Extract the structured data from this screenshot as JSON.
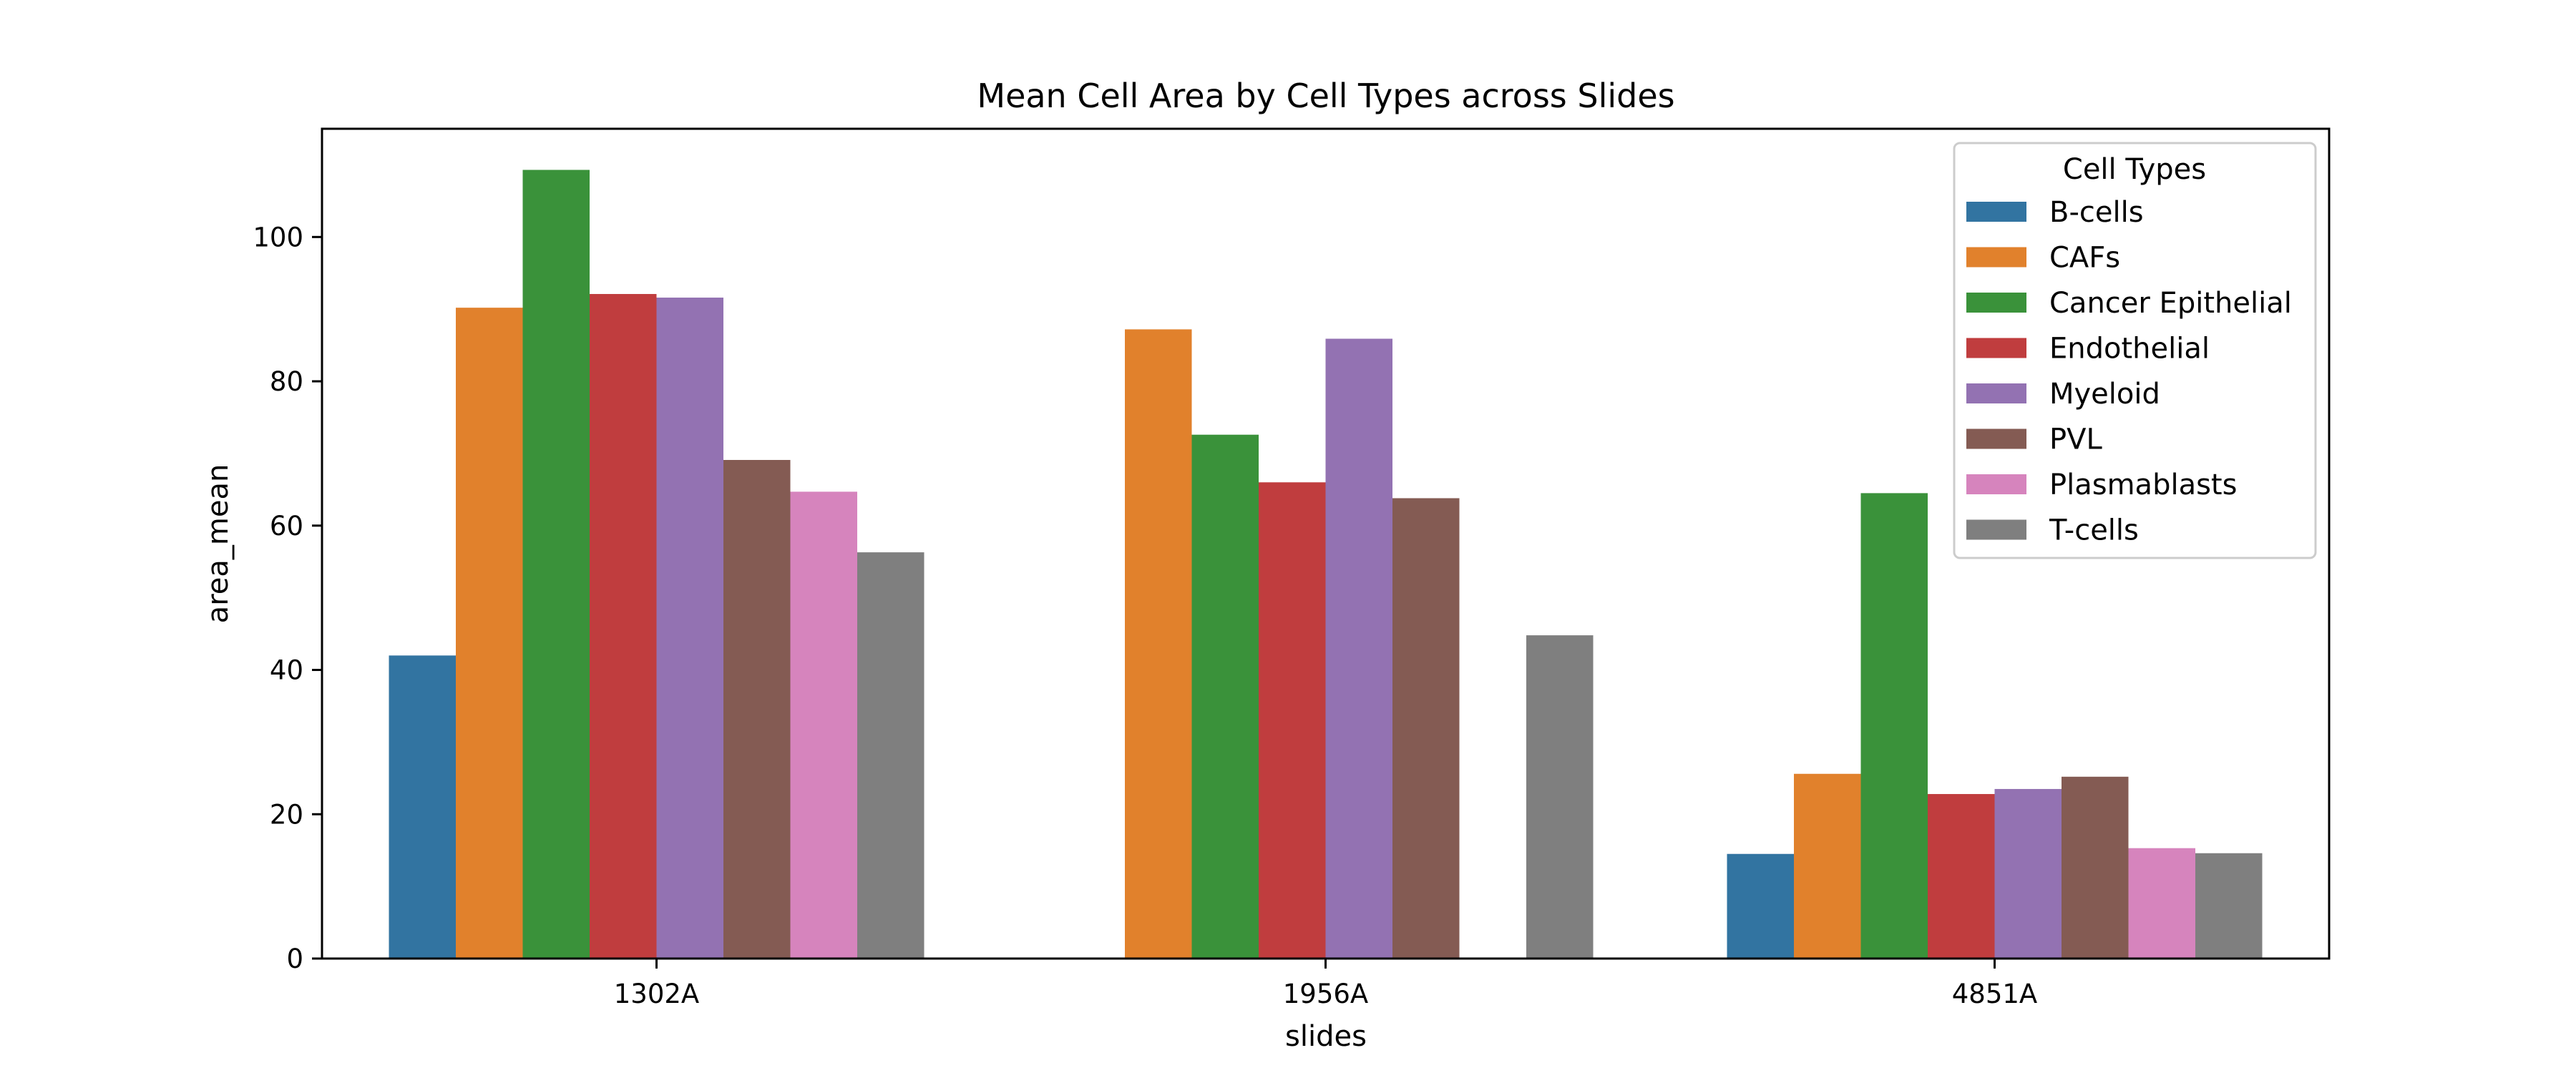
{
  "chart_data": {
    "type": "bar",
    "title": "Mean Cell Area by Cell Types across Slides",
    "xlabel": "slides",
    "ylabel": "area_mean",
    "ylim": [
      0,
      115
    ],
    "yticks": [
      0,
      20,
      40,
      60,
      80,
      100
    ],
    "grid": false,
    "legend_title": "Cell Types",
    "legend_position": "top-right",
    "categories": [
      "1302A",
      "1956A",
      "4851A"
    ],
    "series": [
      {
        "name": "B-cells",
        "color": "#3274a1",
        "values": [
          42.0,
          null,
          14.5
        ]
      },
      {
        "name": "CAFs",
        "color": "#e1812c",
        "values": [
          90.2,
          87.2,
          25.6
        ]
      },
      {
        "name": "Cancer Epithelial",
        "color": "#3a923a",
        "values": [
          109.3,
          72.6,
          64.5
        ]
      },
      {
        "name": "Endothelial",
        "color": "#c03d3e",
        "values": [
          92.1,
          66.0,
          22.8
        ]
      },
      {
        "name": "Myeloid",
        "color": "#9372b2",
        "values": [
          91.6,
          85.9,
          23.5
        ]
      },
      {
        "name": "PVL",
        "color": "#845b53",
        "values": [
          69.1,
          63.8,
          25.2
        ]
      },
      {
        "name": "Plasmablasts",
        "color": "#d684bd",
        "values": [
          64.7,
          null,
          15.3
        ]
      },
      {
        "name": "T-cells",
        "color": "#7f7f7f",
        "values": [
          56.3,
          44.8,
          14.6
        ]
      }
    ]
  }
}
